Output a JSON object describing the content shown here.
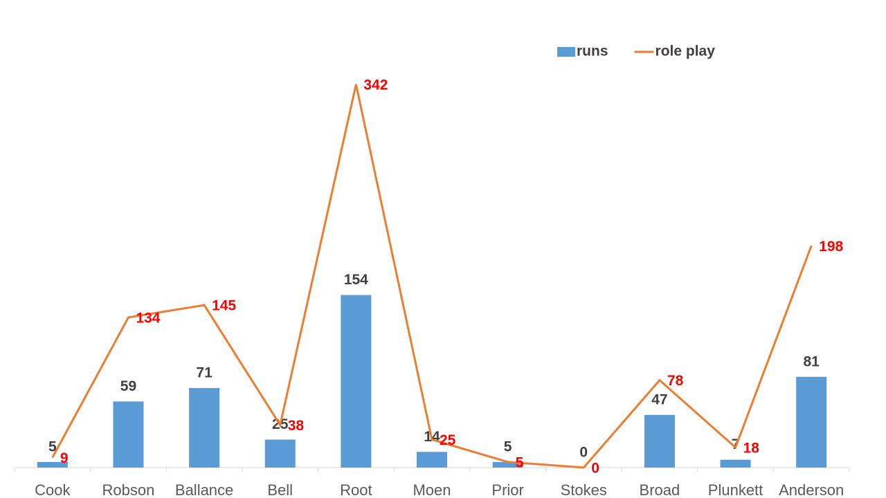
{
  "chart_data": {
    "type": "bar-line",
    "categories": [
      "Cook",
      "Robson",
      "Ballance",
      "Bell",
      "Root",
      "Moen",
      "Prior",
      "Stokes",
      "Broad",
      "Plunkett",
      "Anderson"
    ],
    "series": [
      {
        "name": "runs",
        "type": "bar",
        "color": "#5b9bd5",
        "values": [
          5,
          59,
          71,
          25,
          154,
          14,
          5,
          0,
          47,
          7,
          81
        ]
      },
      {
        "name": "role play",
        "type": "line",
        "color": "#ed7d31",
        "values": [
          9,
          134,
          145,
          38,
          342,
          25,
          5,
          0,
          78,
          18,
          198
        ]
      }
    ],
    "ylim": [
      0,
      400
    ],
    "legend": "top"
  }
}
